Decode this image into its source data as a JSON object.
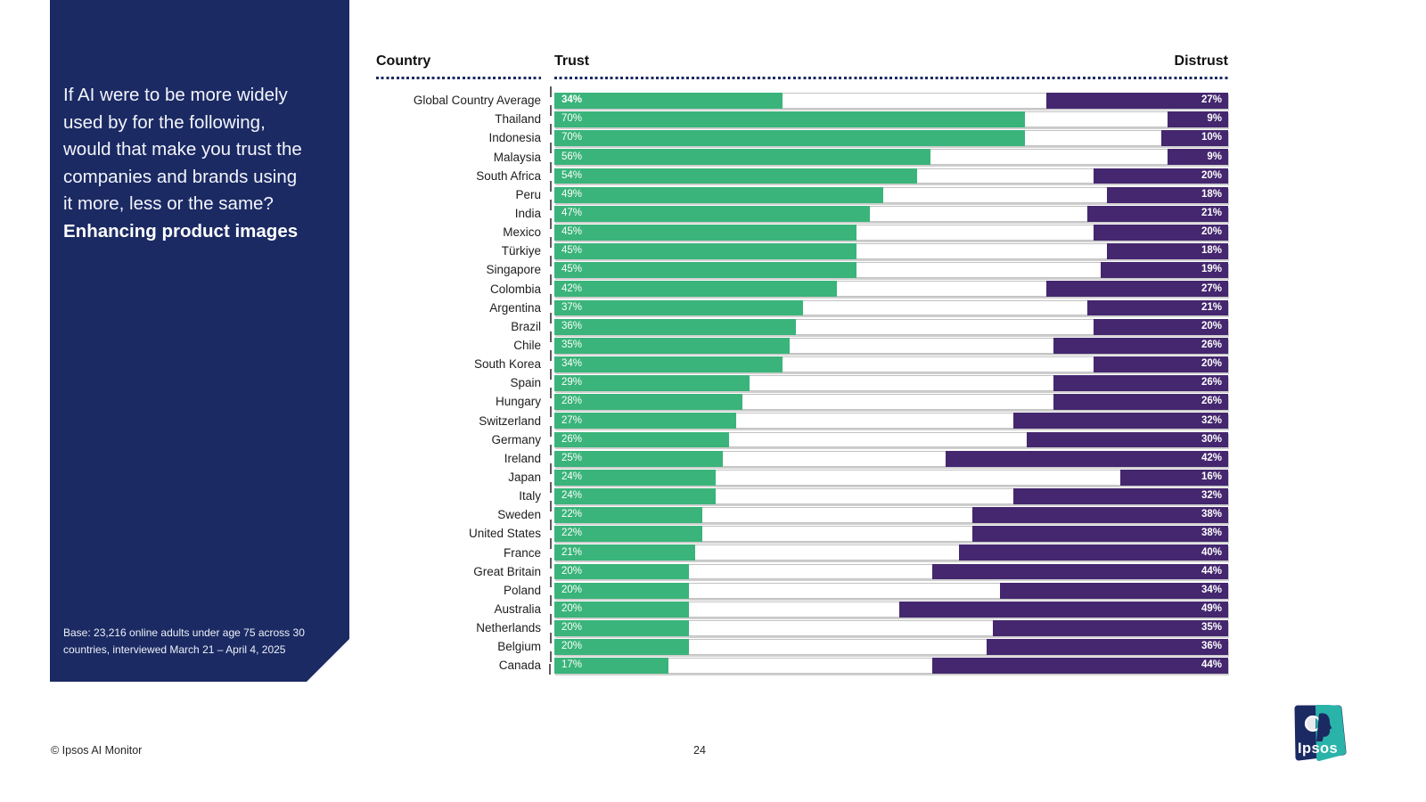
{
  "sidebar": {
    "question": "If AI were to be more widely\nused by for the following,\nwould that make you trust the\ncompanies and brands using\nit more, less or the same?",
    "question_emphasis": "Enhancing product images",
    "base_note": "Base: 23,216 online adults under age 75 across 30\ncountries, interviewed March 21 – April 4, 2025"
  },
  "chart_data": {
    "type": "bar",
    "variant": "horizontal-diverging",
    "title": "Enhancing product images",
    "unit": "%",
    "xlim": [
      0,
      100
    ],
    "grid": false,
    "legend_position": "column-headers",
    "columns": {
      "country": "Country",
      "trust": "Trust",
      "distrust": "Distrust"
    },
    "colors": {
      "trust": "#3ab47a",
      "distrust": "#44276e"
    },
    "rows": [
      {
        "country": "Global Country Average",
        "trust": 34,
        "distrust": 27,
        "bold": true
      },
      {
        "country": "Thailand",
        "trust": 70,
        "distrust": 9
      },
      {
        "country": "Indonesia",
        "trust": 70,
        "distrust": 10
      },
      {
        "country": "Malaysia",
        "trust": 56,
        "distrust": 9
      },
      {
        "country": "South Africa",
        "trust": 54,
        "distrust": 20
      },
      {
        "country": "Peru",
        "trust": 49,
        "distrust": 18
      },
      {
        "country": "India",
        "trust": 47,
        "distrust": 21
      },
      {
        "country": "Mexico",
        "trust": 45,
        "distrust": 20
      },
      {
        "country": "Türkiye",
        "trust": 45,
        "distrust": 18
      },
      {
        "country": "Singapore",
        "trust": 45,
        "distrust": 19
      },
      {
        "country": "Colombia",
        "trust": 42,
        "distrust": 27
      },
      {
        "country": "Argentina",
        "trust": 37,
        "distrust": 21
      },
      {
        "country": "Brazil",
        "trust": 36,
        "distrust": 20
      },
      {
        "country": "Chile",
        "trust": 35,
        "distrust": 26
      },
      {
        "country": "South Korea",
        "trust": 34,
        "distrust": 20
      },
      {
        "country": "Spain",
        "trust": 29,
        "distrust": 26
      },
      {
        "country": "Hungary",
        "trust": 28,
        "distrust": 26
      },
      {
        "country": "Switzerland",
        "trust": 27,
        "distrust": 32
      },
      {
        "country": "Germany",
        "trust": 26,
        "distrust": 30
      },
      {
        "country": "Ireland",
        "trust": 25,
        "distrust": 42
      },
      {
        "country": "Japan",
        "trust": 24,
        "distrust": 16
      },
      {
        "country": "Italy",
        "trust": 24,
        "distrust": 32
      },
      {
        "country": "Sweden",
        "trust": 22,
        "distrust": 38
      },
      {
        "country": "United States",
        "trust": 22,
        "distrust": 38
      },
      {
        "country": "France",
        "trust": 21,
        "distrust": 40
      },
      {
        "country": "Great Britain",
        "trust": 20,
        "distrust": 44
      },
      {
        "country": "Poland",
        "trust": 20,
        "distrust": 34
      },
      {
        "country": "Australia",
        "trust": 20,
        "distrust": 49
      },
      {
        "country": "Netherlands",
        "trust": 20,
        "distrust": 35
      },
      {
        "country": "Belgium",
        "trust": 20,
        "distrust": 36
      },
      {
        "country": "Canada",
        "trust": 17,
        "distrust": 44
      }
    ]
  },
  "footer": {
    "copyright": "© Ipsos AI Monitor",
    "page_number": "24"
  },
  "logo": {
    "text": "Ipsos",
    "navy": "#1b2a63",
    "teal": "#2ab3a9"
  },
  "theme": {
    "navy": "#1b2a63",
    "background": "#ffffff"
  }
}
